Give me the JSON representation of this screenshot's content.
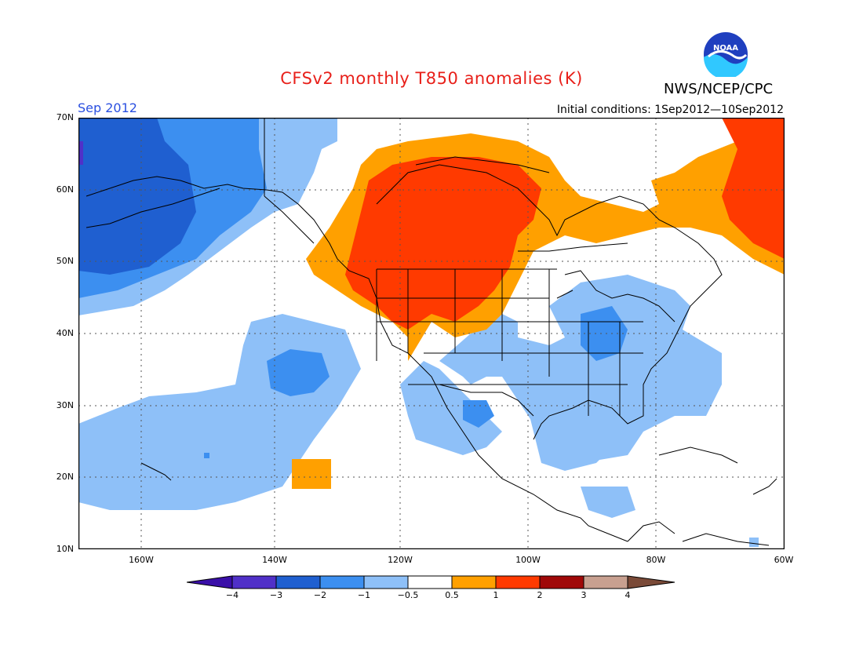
{
  "header": {
    "title": "CFSv2 monthly T850 anomalies (K)",
    "agency": "NWS/NCEP/CPC",
    "month": "Sep 2012",
    "initial_conditions": "Initial conditions: 1Sep2012—10Sep2012",
    "logo_text": "NOAA"
  },
  "map": {
    "lat_labels": [
      "70N",
      "60N",
      "50N",
      "40N",
      "30N",
      "20N",
      "10N"
    ],
    "lon_labels": [
      "160W",
      "140W",
      "120W",
      "100W",
      "80W",
      "60W"
    ],
    "extent": {
      "lon_min": -172,
      "lon_max": -60,
      "lat_min": 10,
      "lat_max": 70
    }
  },
  "colorbar": {
    "labels": [
      "−4",
      "−3",
      "−2",
      "−1",
      "−0.5",
      "0.5",
      "1",
      "2",
      "3",
      "4"
    ],
    "colors": [
      "#3a0fa8",
      "#5030c8",
      "#1f5fd0",
      "#3c8ff0",
      "#8ec0f8",
      "#ffffff",
      "#ffa000",
      "#ff3a00",
      "#a00808",
      "#c8a090",
      "#7a4a38"
    ]
  }
}
